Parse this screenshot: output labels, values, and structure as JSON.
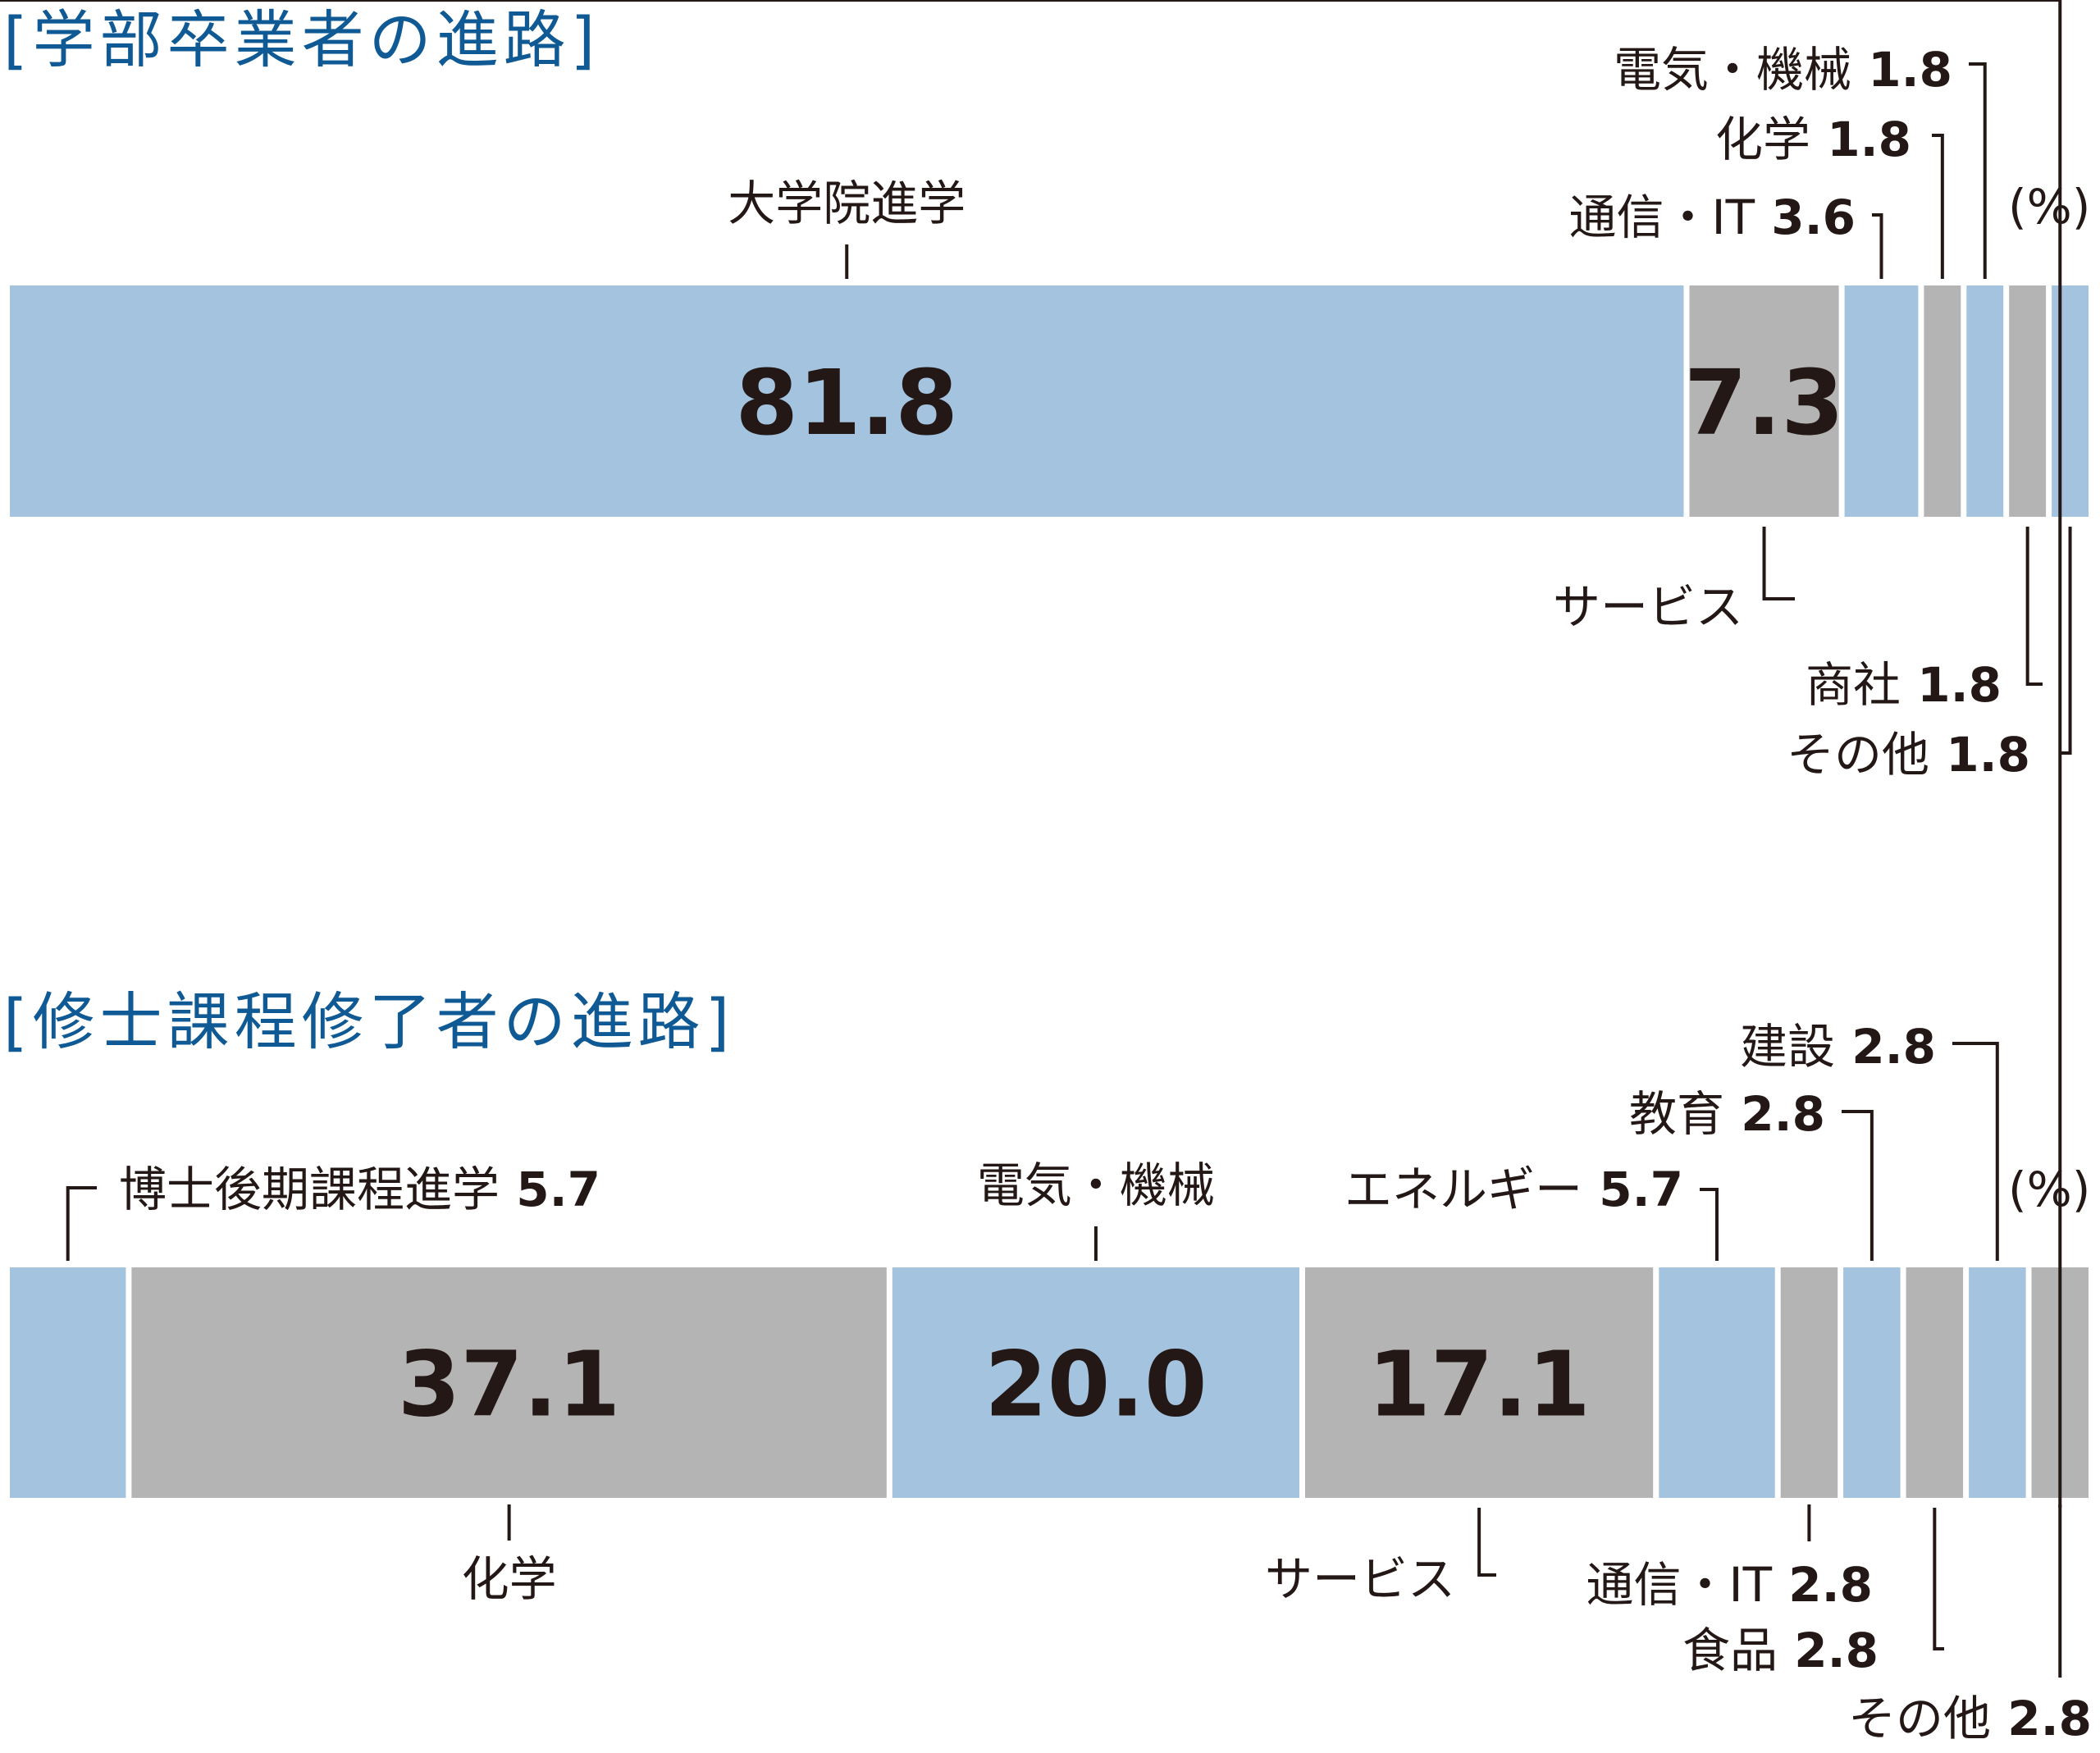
{
  "colors": {
    "blue": "#a3c3df",
    "gray": "#b4b4b4",
    "title": "#0f5a95",
    "text": "#231815"
  },
  "chart_data": [
    {
      "type": "bar",
      "orientation": "horizontal-stacked",
      "title": "[学部卒業者の進路]",
      "unit": "(%)",
      "segments": [
        {
          "label": "大学院進学",
          "value": 81.8,
          "value_text": "81.8",
          "color": "blue"
        },
        {
          "label": "サービス",
          "value": 7.3,
          "value_text": "7.3",
          "color": "gray"
        },
        {
          "label": "通信・IT",
          "value": 3.6,
          "value_text": "3.6",
          "color": "blue"
        },
        {
          "label": "化学",
          "value": 1.8,
          "value_text": "1.8",
          "color": "gray"
        },
        {
          "label": "電気・機械",
          "value": 1.8,
          "value_text": "1.8",
          "color": "blue"
        },
        {
          "label": "商社",
          "value": 1.8,
          "value_text": "1.8",
          "color": "gray"
        },
        {
          "label": "その他",
          "value": 1.8,
          "value_text": "1.8",
          "color": "blue"
        }
      ]
    },
    {
      "type": "bar",
      "orientation": "horizontal-stacked",
      "title": "[修士課程修了者の進路]",
      "unit": "(%)",
      "segments": [
        {
          "label": "博士後期課程進学",
          "value": 5.7,
          "value_text": "5.7",
          "color": "blue"
        },
        {
          "label": "化学",
          "value": 37.1,
          "value_text": "37.1",
          "color": "gray"
        },
        {
          "label": "電気・機械",
          "value": 20.0,
          "value_text": "20.0",
          "color": "blue"
        },
        {
          "label": "サービス",
          "value": 17.1,
          "value_text": "17.1",
          "color": "gray"
        },
        {
          "label": "エネルギー",
          "value": 5.7,
          "value_text": "5.7",
          "color": "blue"
        },
        {
          "label": "通信・IT",
          "value": 2.8,
          "value_text": "2.8",
          "color": "gray"
        },
        {
          "label": "教育",
          "value": 2.8,
          "value_text": "2.8",
          "color": "blue"
        },
        {
          "label": "食品",
          "value": 2.8,
          "value_text": "2.8",
          "color": "gray"
        },
        {
          "label": "建設",
          "value": 2.8,
          "value_text": "2.8",
          "color": "blue"
        },
        {
          "label": "その他",
          "value": 2.8,
          "value_text": "2.8",
          "color": "gray"
        }
      ]
    }
  ]
}
